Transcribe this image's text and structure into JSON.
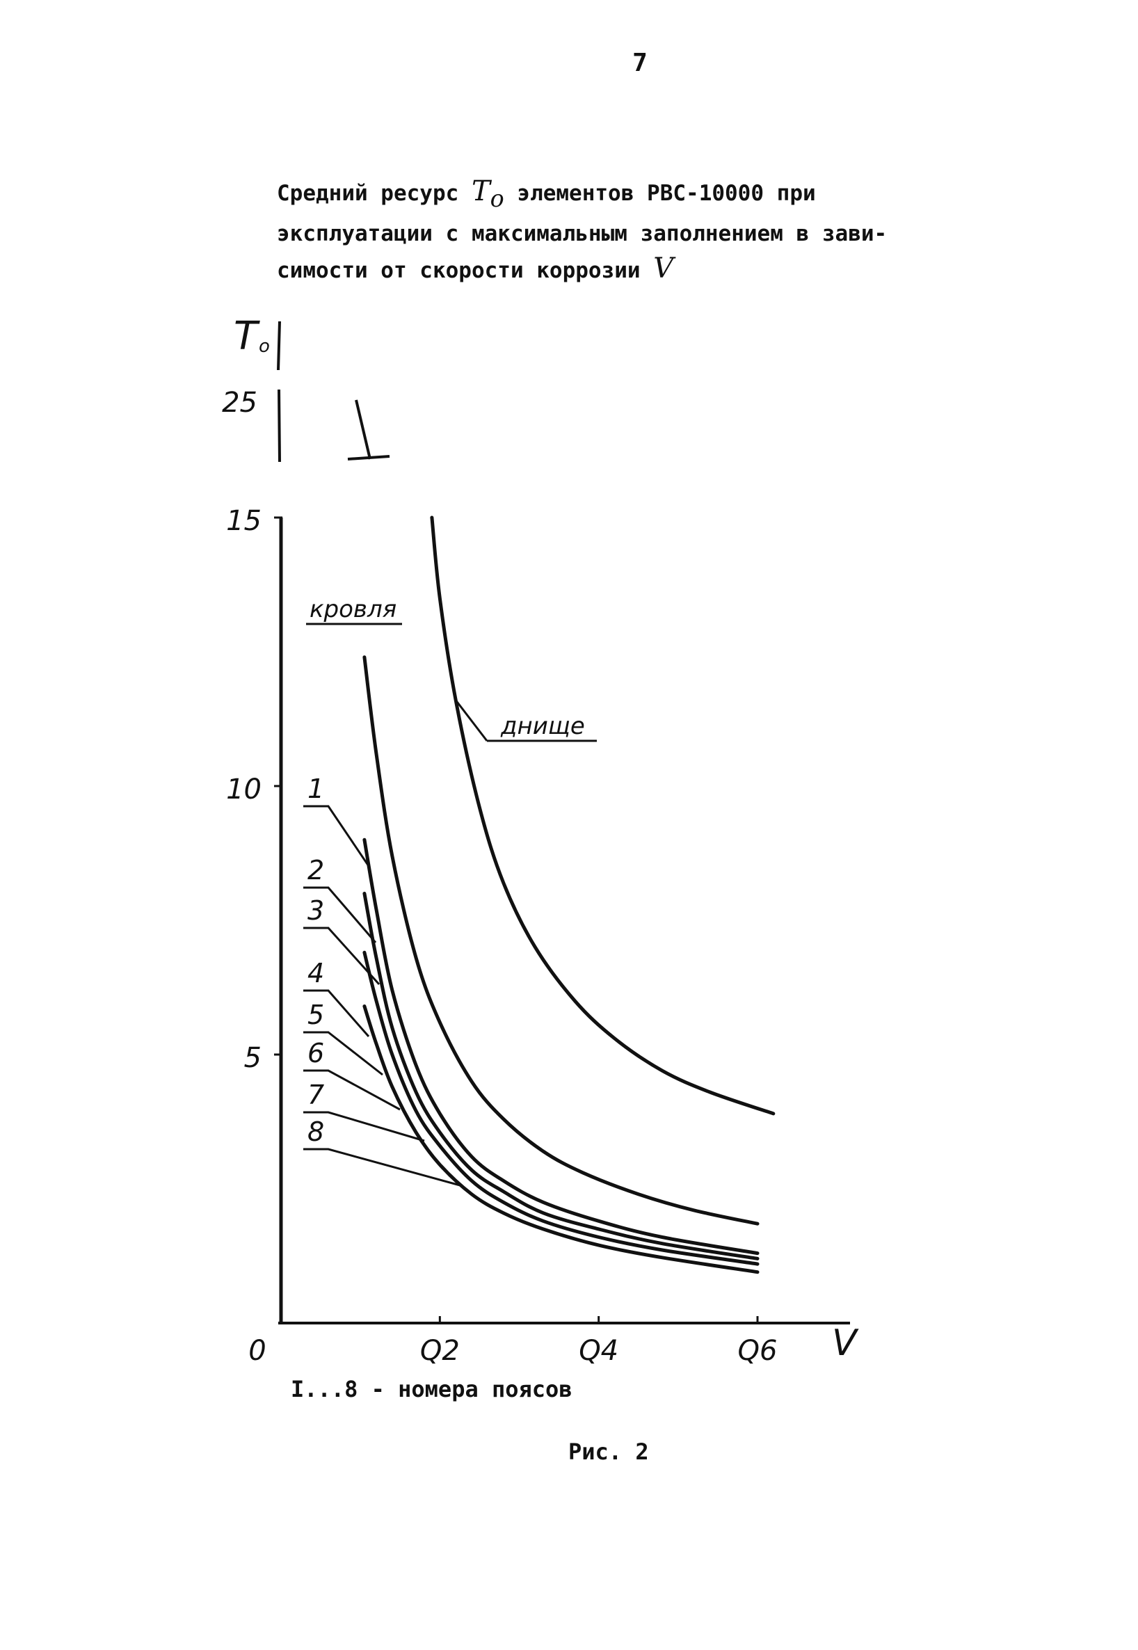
{
  "page": {
    "number": "7"
  },
  "caption": {
    "line1_prefix": "Средний ресурс",
    "line1_symbol": "T",
    "line1_symbol_sub": "o",
    "line1_suffix": "элементов РВС-10000 при",
    "line2": "эксплуатации с максимальным заполнением в зави-",
    "line3_prefix": "симости от скорости коррозии",
    "line3_symbol": "V"
  },
  "chart_data": {
    "type": "line",
    "xlabel": "V",
    "ylabel": "T",
    "ylabel_sub": "o",
    "xlim": [
      0,
      0.72
    ],
    "ylim": [
      0,
      15
    ],
    "xtick_labels": [
      {
        "value": 0,
        "label": "0"
      },
      {
        "value": 0.2,
        "label": "Q2"
      },
      {
        "value": 0.4,
        "label": "Q4"
      },
      {
        "value": 0.6,
        "label": "Q6"
      }
    ],
    "ytick_labels": [
      {
        "value": 5,
        "label": "5"
      },
      {
        "value": 10,
        "label": "10"
      },
      {
        "value": 15,
        "label": "15"
      }
    ],
    "broken_axis_label": "25",
    "series": [
      {
        "name": "днище",
        "x": [
          0.19,
          0.2,
          0.22,
          0.25,
          0.28,
          0.32,
          0.37,
          0.42,
          0.48,
          0.54,
          0.62
        ],
        "y": [
          15,
          13.5,
          11.6,
          9.6,
          8.2,
          7.0,
          6.0,
          5.3,
          4.7,
          4.3,
          3.9
        ]
      },
      {
        "name": "кровля",
        "x": [
          0.105,
          0.12,
          0.14,
          0.17,
          0.2,
          0.24,
          0.28,
          0.33,
          0.38,
          0.45,
          0.52,
          0.6
        ],
        "y": [
          12.4,
          10.6,
          8.7,
          6.8,
          5.6,
          4.5,
          3.8,
          3.2,
          2.8,
          2.4,
          2.1,
          1.85
        ]
      },
      {
        "name": "1",
        "x": [
          0.105,
          0.12,
          0.14,
          0.17,
          0.2,
          0.24,
          0.28,
          0.33,
          0.4,
          0.48,
          0.6
        ],
        "y": [
          9.0,
          7.7,
          6.2,
          4.8,
          3.9,
          3.1,
          2.65,
          2.25,
          1.9,
          1.6,
          1.3
        ]
      },
      {
        "name": "2",
        "x": [
          0.105,
          0.12,
          0.14,
          0.17,
          0.2,
          0.24,
          0.28,
          0.33,
          0.4,
          0.48,
          0.6
        ],
        "y": [
          8.0,
          6.8,
          5.5,
          4.3,
          3.55,
          2.85,
          2.45,
          2.05,
          1.75,
          1.48,
          1.2
        ]
      },
      {
        "name": "3",
        "x": [
          0.105,
          0.12,
          0.14,
          0.17,
          0.2,
          0.24,
          0.28,
          0.33,
          0.4,
          0.48,
          0.6
        ],
        "y": [
          6.9,
          6.0,
          5.0,
          3.95,
          3.3,
          2.65,
          2.25,
          1.9,
          1.6,
          1.36,
          1.1
        ]
      },
      {
        "name": "4",
        "x": [
          0.105,
          0.12,
          0.14,
          0.17,
          0.2,
          0.24,
          0.28,
          0.33,
          0.4,
          0.48,
          0.6
        ],
        "y": [
          5.9,
          5.2,
          4.4,
          3.55,
          2.95,
          2.4,
          2.05,
          1.75,
          1.45,
          1.22,
          0.95
        ]
      },
      {
        "name": "5",
        "x": [],
        "y": []
      },
      {
        "name": "6",
        "x": [],
        "y": []
      },
      {
        "name": "7",
        "x": [],
        "y": []
      },
      {
        "name": "8",
        "x": [],
        "y": []
      }
    ]
  },
  "legend_note": "I...8 - номера поясов",
  "figure_label": "Рис. 2"
}
